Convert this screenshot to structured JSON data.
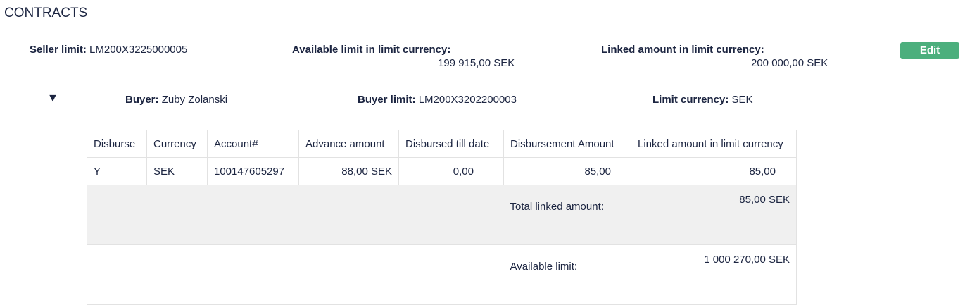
{
  "title": "CONTRACTS",
  "seller": {
    "limit_label": "Seller limit:",
    "limit_value": "LM200X3225000005",
    "available_label": "Available limit in limit currency:",
    "available_value": "199 915,00  SEK",
    "linked_label": "Linked amount in limit currency:",
    "linked_value": "200 000,00  SEK",
    "edit_label": "Edit"
  },
  "buyer": {
    "toggle_icon": "▼",
    "buyer_label": "Buyer:",
    "buyer_value": "Zuby Zolanski",
    "limit_label": "Buyer limit:",
    "limit_value": "LM200X3202200003",
    "currency_label": "Limit currency:",
    "currency_value": "SEK"
  },
  "table": {
    "headers": [
      "Disburse",
      "Currency",
      "Account#",
      "Advance amount",
      "Disbursed till date",
      "Disbursement Amount",
      "Linked amount in limit currency"
    ],
    "rows": [
      [
        "Y",
        "SEK",
        "100147605297",
        "88,00 SEK",
        "0,00",
        "85,00",
        "85,00"
      ]
    ],
    "total_label": "Total linked amount:",
    "total_value": "85,00 SEK",
    "available_label": "Available limit:",
    "available_value": "1 000 270,00 SEK"
  },
  "colors": {
    "edit_button": "#4caf7d",
    "text": "#1c2541"
  }
}
